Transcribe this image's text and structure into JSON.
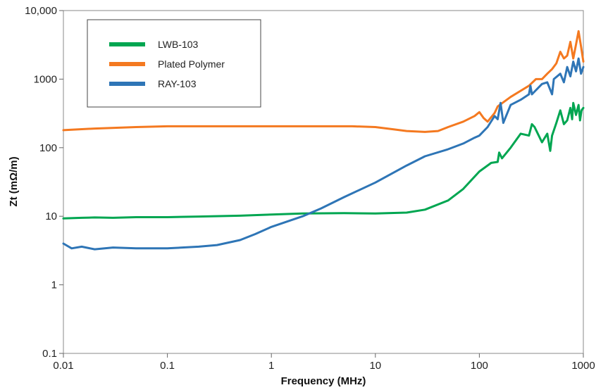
{
  "chart_data": {
    "type": "line",
    "title": "",
    "xlabel": "Frequency (MHz)",
    "ylabel": "Zt (mΩ/m)",
    "x_scale": "log",
    "y_scale": "log",
    "xlim": [
      0.01,
      1000
    ],
    "ylim": [
      0.1,
      10000
    ],
    "x_ticks": [
      0.01,
      0.1,
      1,
      10,
      100,
      1000
    ],
    "x_tick_labels": [
      "0.01",
      "0.1",
      "1",
      "10",
      "100",
      "1000"
    ],
    "y_ticks": [
      0.1,
      1,
      10,
      100,
      1000,
      10000
    ],
    "y_tick_labels": [
      "0.1",
      "1",
      "10",
      "100",
      "1000",
      "10,000"
    ],
    "grid": false,
    "legend_position": "top-left",
    "series": [
      {
        "name": "LWB-103",
        "color": "#00a651",
        "points": [
          [
            0.01,
            9.3
          ],
          [
            0.015,
            9.5
          ],
          [
            0.02,
            9.6
          ],
          [
            0.03,
            9.5
          ],
          [
            0.05,
            9.7
          ],
          [
            0.1,
            9.7
          ],
          [
            0.2,
            9.9
          ],
          [
            0.5,
            10.2
          ],
          [
            1,
            10.6
          ],
          [
            2,
            11
          ],
          [
            5,
            11.1
          ],
          [
            10,
            11
          ],
          [
            20,
            11.3
          ],
          [
            30,
            12.5
          ],
          [
            50,
            17
          ],
          [
            70,
            25
          ],
          [
            100,
            45
          ],
          [
            130,
            60
          ],
          [
            150,
            62
          ],
          [
            155,
            85
          ],
          [
            165,
            70
          ],
          [
            200,
            100
          ],
          [
            250,
            160
          ],
          [
            300,
            150
          ],
          [
            320,
            220
          ],
          [
            340,
            200
          ],
          [
            400,
            120
          ],
          [
            450,
            160
          ],
          [
            480,
            90
          ],
          [
            500,
            150
          ],
          [
            550,
            230
          ],
          [
            600,
            350
          ],
          [
            650,
            220
          ],
          [
            700,
            250
          ],
          [
            750,
            380
          ],
          [
            780,
            260
          ],
          [
            800,
            450
          ],
          [
            850,
            300
          ],
          [
            900,
            420
          ],
          [
            930,
            250
          ],
          [
            960,
            350
          ],
          [
            1000,
            380
          ]
        ]
      },
      {
        "name": "Plated Polymer",
        "color": "#f47920",
        "points": [
          [
            0.01,
            180
          ],
          [
            0.02,
            190
          ],
          [
            0.05,
            200
          ],
          [
            0.1,
            205
          ],
          [
            0.3,
            205
          ],
          [
            1,
            205
          ],
          [
            3,
            205
          ],
          [
            6,
            205
          ],
          [
            10,
            200
          ],
          [
            15,
            185
          ],
          [
            20,
            175
          ],
          [
            30,
            170
          ],
          [
            40,
            175
          ],
          [
            50,
            200
          ],
          [
            70,
            240
          ],
          [
            90,
            290
          ],
          [
            100,
            330
          ],
          [
            110,
            270
          ],
          [
            120,
            240
          ],
          [
            140,
            320
          ],
          [
            150,
            400
          ],
          [
            200,
            550
          ],
          [
            300,
            800
          ],
          [
            350,
            1000
          ],
          [
            400,
            1000
          ],
          [
            450,
            1200
          ],
          [
            500,
            1400
          ],
          [
            550,
            1700
          ],
          [
            600,
            2500
          ],
          [
            650,
            2000
          ],
          [
            700,
            2200
          ],
          [
            750,
            3500
          ],
          [
            800,
            2000
          ],
          [
            850,
            3200
          ],
          [
            900,
            5000
          ],
          [
            950,
            3000
          ],
          [
            1000,
            1800
          ]
        ]
      },
      {
        "name": "RAY-103",
        "color": "#2e75b6",
        "points": [
          [
            0.01,
            4
          ],
          [
            0.012,
            3.4
          ],
          [
            0.015,
            3.6
          ],
          [
            0.02,
            3.3
          ],
          [
            0.03,
            3.5
          ],
          [
            0.05,
            3.4
          ],
          [
            0.1,
            3.4
          ],
          [
            0.2,
            3.6
          ],
          [
            0.3,
            3.8
          ],
          [
            0.5,
            4.5
          ],
          [
            0.7,
            5.5
          ],
          [
            1,
            7
          ],
          [
            2,
            10
          ],
          [
            3,
            13
          ],
          [
            5,
            19
          ],
          [
            10,
            31
          ],
          [
            20,
            55
          ],
          [
            30,
            75
          ],
          [
            50,
            95
          ],
          [
            70,
            115
          ],
          [
            90,
            140
          ],
          [
            100,
            150
          ],
          [
            120,
            200
          ],
          [
            140,
            290
          ],
          [
            150,
            260
          ],
          [
            160,
            450
          ],
          [
            170,
            230
          ],
          [
            200,
            420
          ],
          [
            250,
            500
          ],
          [
            300,
            600
          ],
          [
            310,
            800
          ],
          [
            320,
            600
          ],
          [
            400,
            850
          ],
          [
            450,
            900
          ],
          [
            500,
            600
          ],
          [
            520,
            1000
          ],
          [
            600,
            1200
          ],
          [
            650,
            900
          ],
          [
            700,
            1500
          ],
          [
            750,
            1100
          ],
          [
            800,
            1800
          ],
          [
            850,
            1300
          ],
          [
            900,
            2000
          ],
          [
            950,
            1200
          ],
          [
            1000,
            1500
          ]
        ]
      }
    ]
  }
}
